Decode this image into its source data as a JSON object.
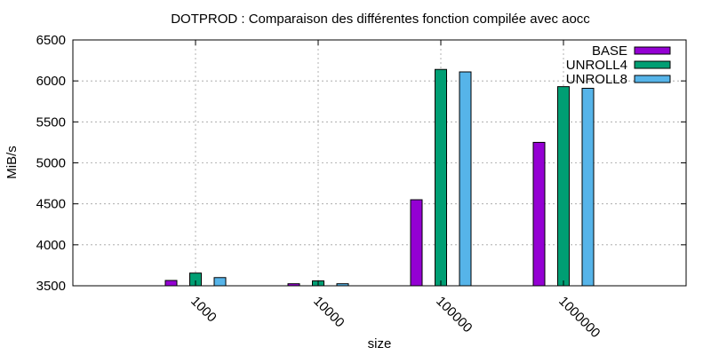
{
  "chart_data": {
    "type": "bar",
    "title": "DOTPROD : Comparaison des différentes fonction compilée avec aocc",
    "xlabel": "size",
    "ylabel": "MiB/s",
    "ylim": [
      3500,
      6500
    ],
    "yticks": [
      3500,
      4000,
      4500,
      5000,
      5500,
      6000,
      6500
    ],
    "grid": true,
    "legend_position": "top-right",
    "categories": [
      "1000",
      "10000",
      "100000",
      "1000000"
    ],
    "series": [
      {
        "name": "BASE",
        "color": "#9400d3",
        "values": [
          3565,
          3525,
          4550,
          5250
        ]
      },
      {
        "name": "UNROLL4",
        "color": "#009e73",
        "values": [
          3655,
          3560,
          6140,
          5930
        ]
      },
      {
        "name": "UNROLL8",
        "color": "#56b4e9",
        "values": [
          3600,
          3525,
          6110,
          5910
        ]
      }
    ]
  }
}
